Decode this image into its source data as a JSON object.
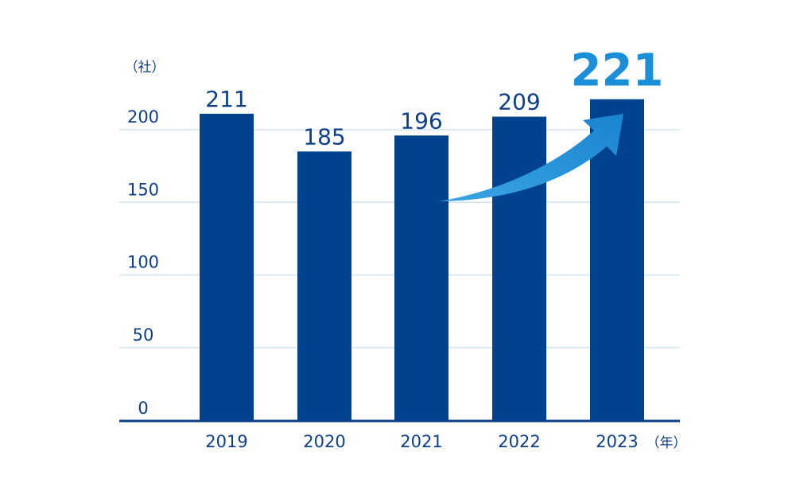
{
  "chart_data": {
    "type": "bar",
    "categories": [
      "2019",
      "2020",
      "2021",
      "2022",
      "2023"
    ],
    "values": [
      211,
      185,
      196,
      209,
      221
    ],
    "value_labels": [
      "211",
      "185",
      "196",
      "209",
      "221"
    ],
    "highlight_index": 4,
    "y_unit": "（社）",
    "x_unit": "（年）",
    "y_ticks": [
      "0",
      "50",
      "100",
      "150",
      "200"
    ],
    "ylim": [
      0,
      200
    ],
    "grid": true,
    "colors": {
      "bar": "#00428e",
      "highlight_text": "#1a8fd8",
      "grid": "#d3e3f0",
      "axis": "#0d3f87",
      "arrow": "#1a8fd8"
    },
    "annotation": "growth-arrow"
  }
}
